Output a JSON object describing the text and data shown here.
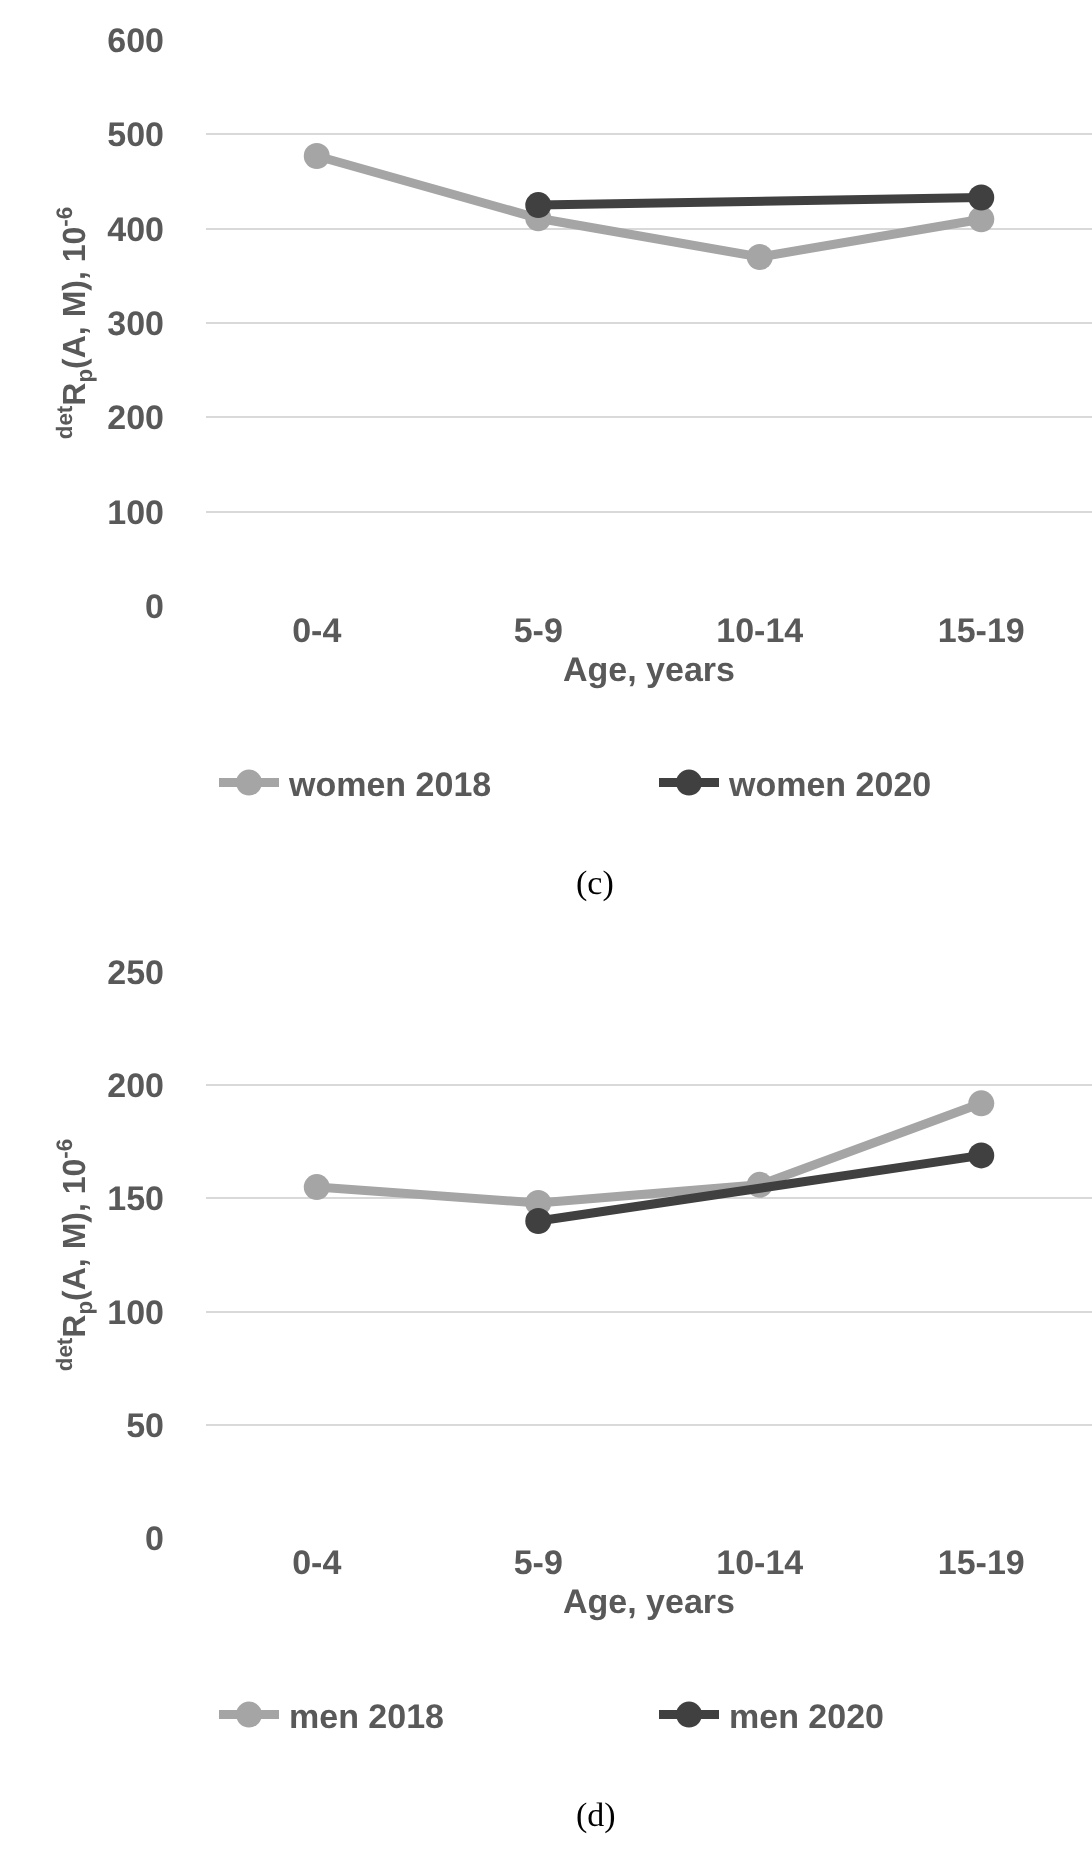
{
  "chart_data": [
    {
      "type": "line",
      "categories": [
        "0-4",
        "5-9",
        "10-14",
        "15-19"
      ],
      "xlabel": "Age, years",
      "ylabel": "$^{det}$R$_{p}$(A, M), 10$^{-6}$",
      "series": [
        {
          "name": "women 2018",
          "color": "#a5a5a5",
          "values": [
            477,
            411,
            370,
            410
          ]
        },
        {
          "name": "women 2020",
          "color": "#404040",
          "values": [
            null,
            425,
            null,
            433
          ]
        }
      ],
      "ylim": [
        0,
        600
      ],
      "yticks": [
        0,
        100,
        200,
        300,
        400,
        500,
        600
      ],
      "grid": "y",
      "legend": "bottom",
      "marker": "circle",
      "line_style": "solid",
      "annotations": [
        "(c)"
      ]
    },
    {
      "type": "line",
      "categories": [
        "0-4",
        "5-9",
        "10-14",
        "15-19"
      ],
      "xlabel": "Age, years",
      "ylabel": "$^{det}$R$_{p}$(A, M), 10$^{-6}$",
      "series": [
        {
          "name": "men 2018",
          "color": "#a5a5a5",
          "values": [
            155,
            148,
            156,
            192
          ]
        },
        {
          "name": "men 2020",
          "color": "#404040",
          "values": [
            null,
            140,
            null,
            169
          ]
        }
      ],
      "ylim": [
        0,
        250
      ],
      "yticks": [
        0,
        50,
        100,
        150,
        200,
        250
      ],
      "grid": "y",
      "legend": "bottom",
      "marker": "circle",
      "line_style": "solid",
      "annotations": [
        "(d)"
      ]
    }
  ]
}
